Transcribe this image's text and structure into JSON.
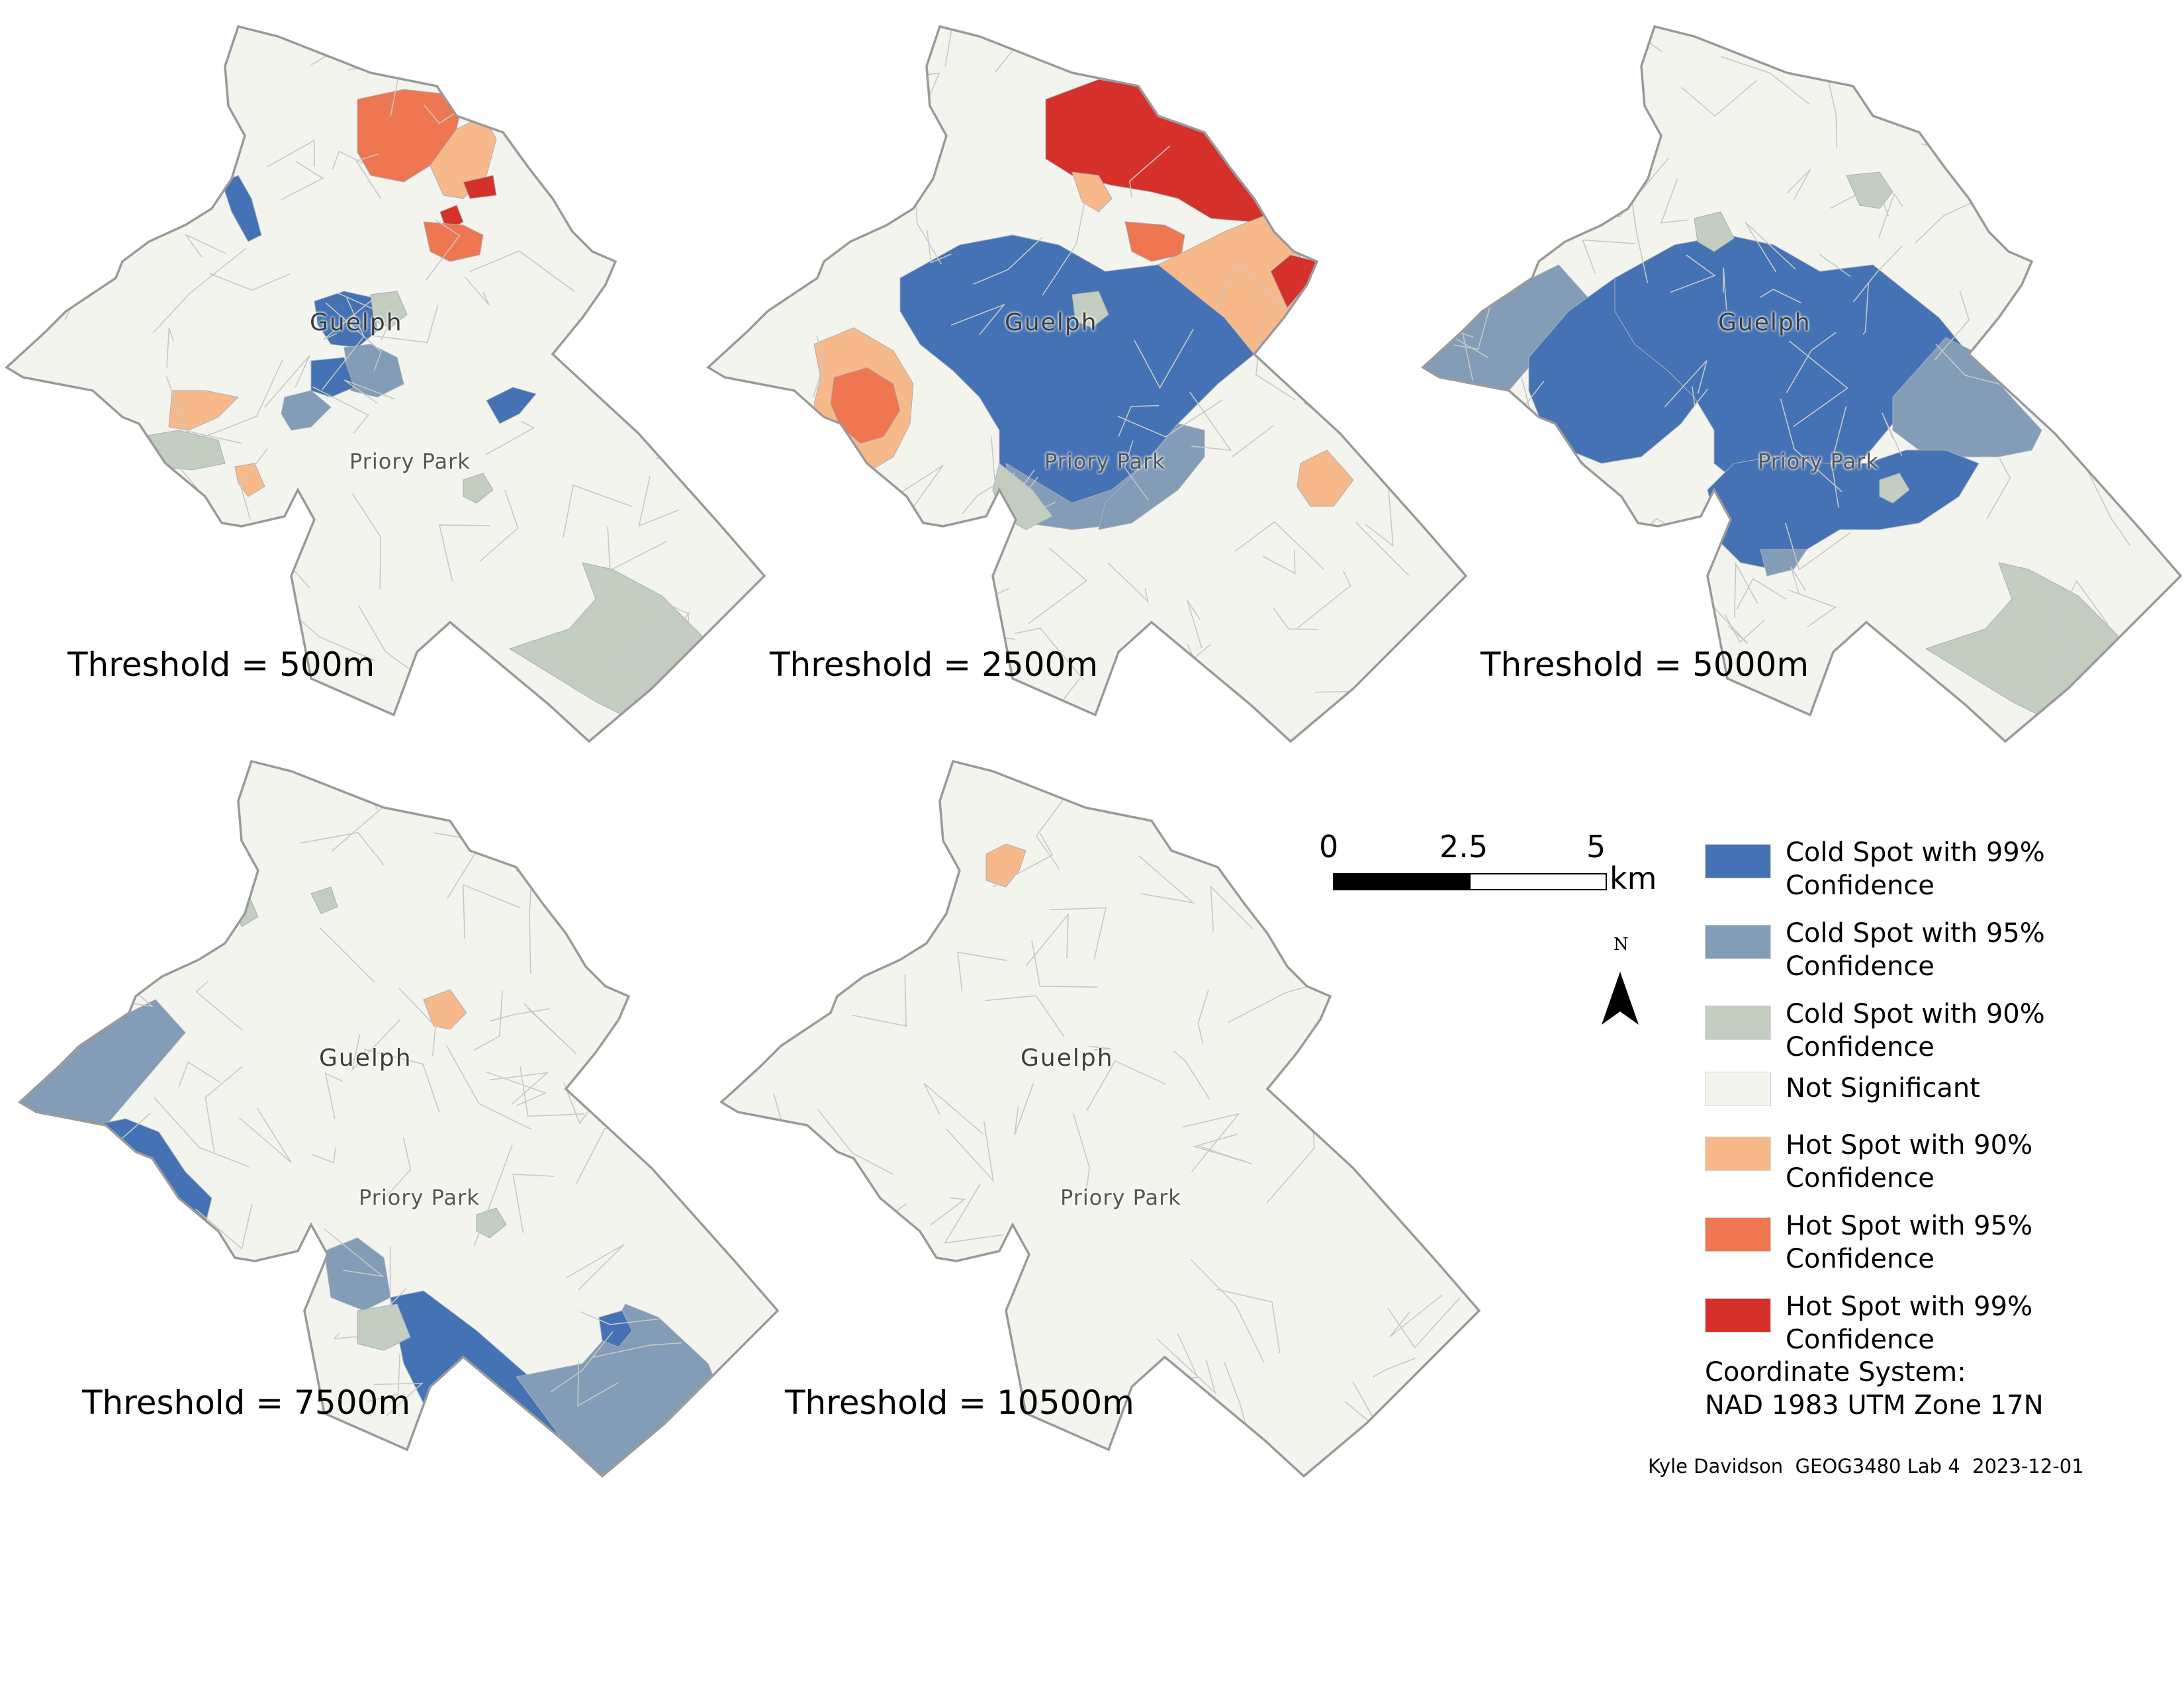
{
  "panels": [
    {
      "label": "Threshold = 500m",
      "city_label": "Guelph",
      "park_label": "Priory Park",
      "patches": [
        {
          "cls": "hot95",
          "shape": "north_a"
        },
        {
          "cls": "hot90",
          "shape": "north_b"
        },
        {
          "cls": "hot99",
          "shape": "north_c"
        },
        {
          "cls": "hot99",
          "shape": "north_d"
        },
        {
          "cls": "hot95",
          "shape": "north_e"
        },
        {
          "cls": "cold99",
          "shape": "nw_sliver"
        },
        {
          "cls": "cold99",
          "shape": "center_a"
        },
        {
          "cls": "cold95",
          "shape": "center_b"
        },
        {
          "cls": "cold99",
          "shape": "center_c"
        },
        {
          "cls": "cold95",
          "shape": "center_d"
        },
        {
          "cls": "cold90",
          "shape": "center_e"
        },
        {
          "cls": "cold99",
          "shape": "east_small"
        },
        {
          "cls": "hot90",
          "shape": "west_small"
        },
        {
          "cls": "hot90",
          "shape": "sw_small"
        },
        {
          "cls": "cold90",
          "shape": "sw_gray"
        },
        {
          "cls": "cold90",
          "shape": "se_big"
        },
        {
          "cls": "cold90",
          "shape": "park_small"
        }
      ]
    },
    {
      "label": "Threshold = 2500m",
      "city_label": "Guelph",
      "park_label": "Priory Park",
      "patches": [
        {
          "cls": "hot99",
          "shape": "north_big"
        },
        {
          "cls": "hot95",
          "shape": "north_e"
        },
        {
          "cls": "hot90",
          "shape": "ne_big"
        },
        {
          "cls": "hot99",
          "shape": "ne_edge"
        },
        {
          "cls": "hot90",
          "shape": "north_b2"
        },
        {
          "cls": "cold99",
          "shape": "central_band"
        },
        {
          "cls": "cold95",
          "shape": "central_band_edge"
        },
        {
          "cls": "cold90",
          "shape": "center_e"
        },
        {
          "cls": "hot90",
          "shape": "west_cluster"
        },
        {
          "cls": "hot95",
          "shape": "west_core"
        },
        {
          "cls": "hot90",
          "shape": "east_patch"
        },
        {
          "cls": "cold95",
          "shape": "south_mix"
        },
        {
          "cls": "cold90",
          "shape": "south_gray"
        }
      ]
    },
    {
      "label": "Threshold = 5000m",
      "city_label": "Guelph",
      "park_label": "Priory Park",
      "patches": [
        {
          "cls": "cold95",
          "shape": "west_big"
        },
        {
          "cls": "cold99",
          "shape": "west_core2"
        },
        {
          "cls": "cold99",
          "shape": "central_band"
        },
        {
          "cls": "cold95",
          "shape": "east_block"
        },
        {
          "cls": "cold99",
          "shape": "south_arc"
        },
        {
          "cls": "cold95",
          "shape": "south_arc_edge"
        },
        {
          "cls": "cold90",
          "shape": "se_big"
        },
        {
          "cls": "cold90",
          "shape": "ne_small"
        },
        {
          "cls": "cold90",
          "shape": "north_small"
        },
        {
          "cls": "cold90",
          "shape": "park_small"
        }
      ]
    },
    {
      "label": "Threshold = 7500m",
      "city_label": "Guelph",
      "park_label": "Priory Park",
      "patches": [
        {
          "cls": "cold95",
          "shape": "west_big"
        },
        {
          "cls": "cold99",
          "shape": "sw_band"
        },
        {
          "cls": "cold99",
          "shape": "south_tri"
        },
        {
          "cls": "cold95",
          "shape": "se_block"
        },
        {
          "cls": "cold95",
          "shape": "south_mid"
        },
        {
          "cls": "cold90",
          "shape": "south_gray2"
        },
        {
          "cls": "cold99",
          "shape": "se_small"
        },
        {
          "cls": "hot90",
          "shape": "ne_hot"
        },
        {
          "cls": "cold90",
          "shape": "north_pair"
        },
        {
          "cls": "cold90",
          "shape": "north_pair2"
        },
        {
          "cls": "cold90",
          "shape": "park_small"
        }
      ]
    },
    {
      "label": "Threshold = 10500m",
      "city_label": "Guelph",
      "park_label": "Priory Park",
      "patches": [
        {
          "cls": "hot90",
          "shape": "north_tiny"
        }
      ]
    }
  ],
  "scale_bar": {
    "ticks": [
      "0",
      "2.5",
      "5"
    ],
    "unit": "km"
  },
  "north_arrow": {
    "letter": "N"
  },
  "legend": {
    "items": [
      {
        "key": "cold99",
        "label": "Cold Spot with 99%\nConfidence",
        "color": "#4472b4"
      },
      {
        "key": "cold95",
        "label": "Cold Spot with 95%\nConfidence",
        "color": "#839db8"
      },
      {
        "key": "cold90",
        "label": "Cold Spot with 90%\nConfidence",
        "color": "#c3cdc0"
      },
      {
        "key": "ns",
        "label": "Not Significant",
        "color": "#f4f4ef"
      },
      {
        "key": "hot90",
        "label": "Hot Spot with 90%\nConfidence",
        "color": "#f8b98a"
      },
      {
        "key": "hot95",
        "label": "Hot Spot with 95%\nConfidence",
        "color": "#ee7651"
      },
      {
        "key": "hot99",
        "label": "Hot Spot with 99%\nConfidence",
        "color": "#d6302b"
      }
    ]
  },
  "coordinate_system": {
    "heading": "Coordinate System:",
    "value": "NAD 1983 UTM Zone 17N"
  },
  "credit": {
    "author": "Kyle Davidson",
    "course": "GEOG3480 Lab 4",
    "date": "2023-12-01"
  },
  "colors": {
    "boundary": "#9a9a9a",
    "internal_lines": "#c8c8c4",
    "background": "#ffffff"
  }
}
